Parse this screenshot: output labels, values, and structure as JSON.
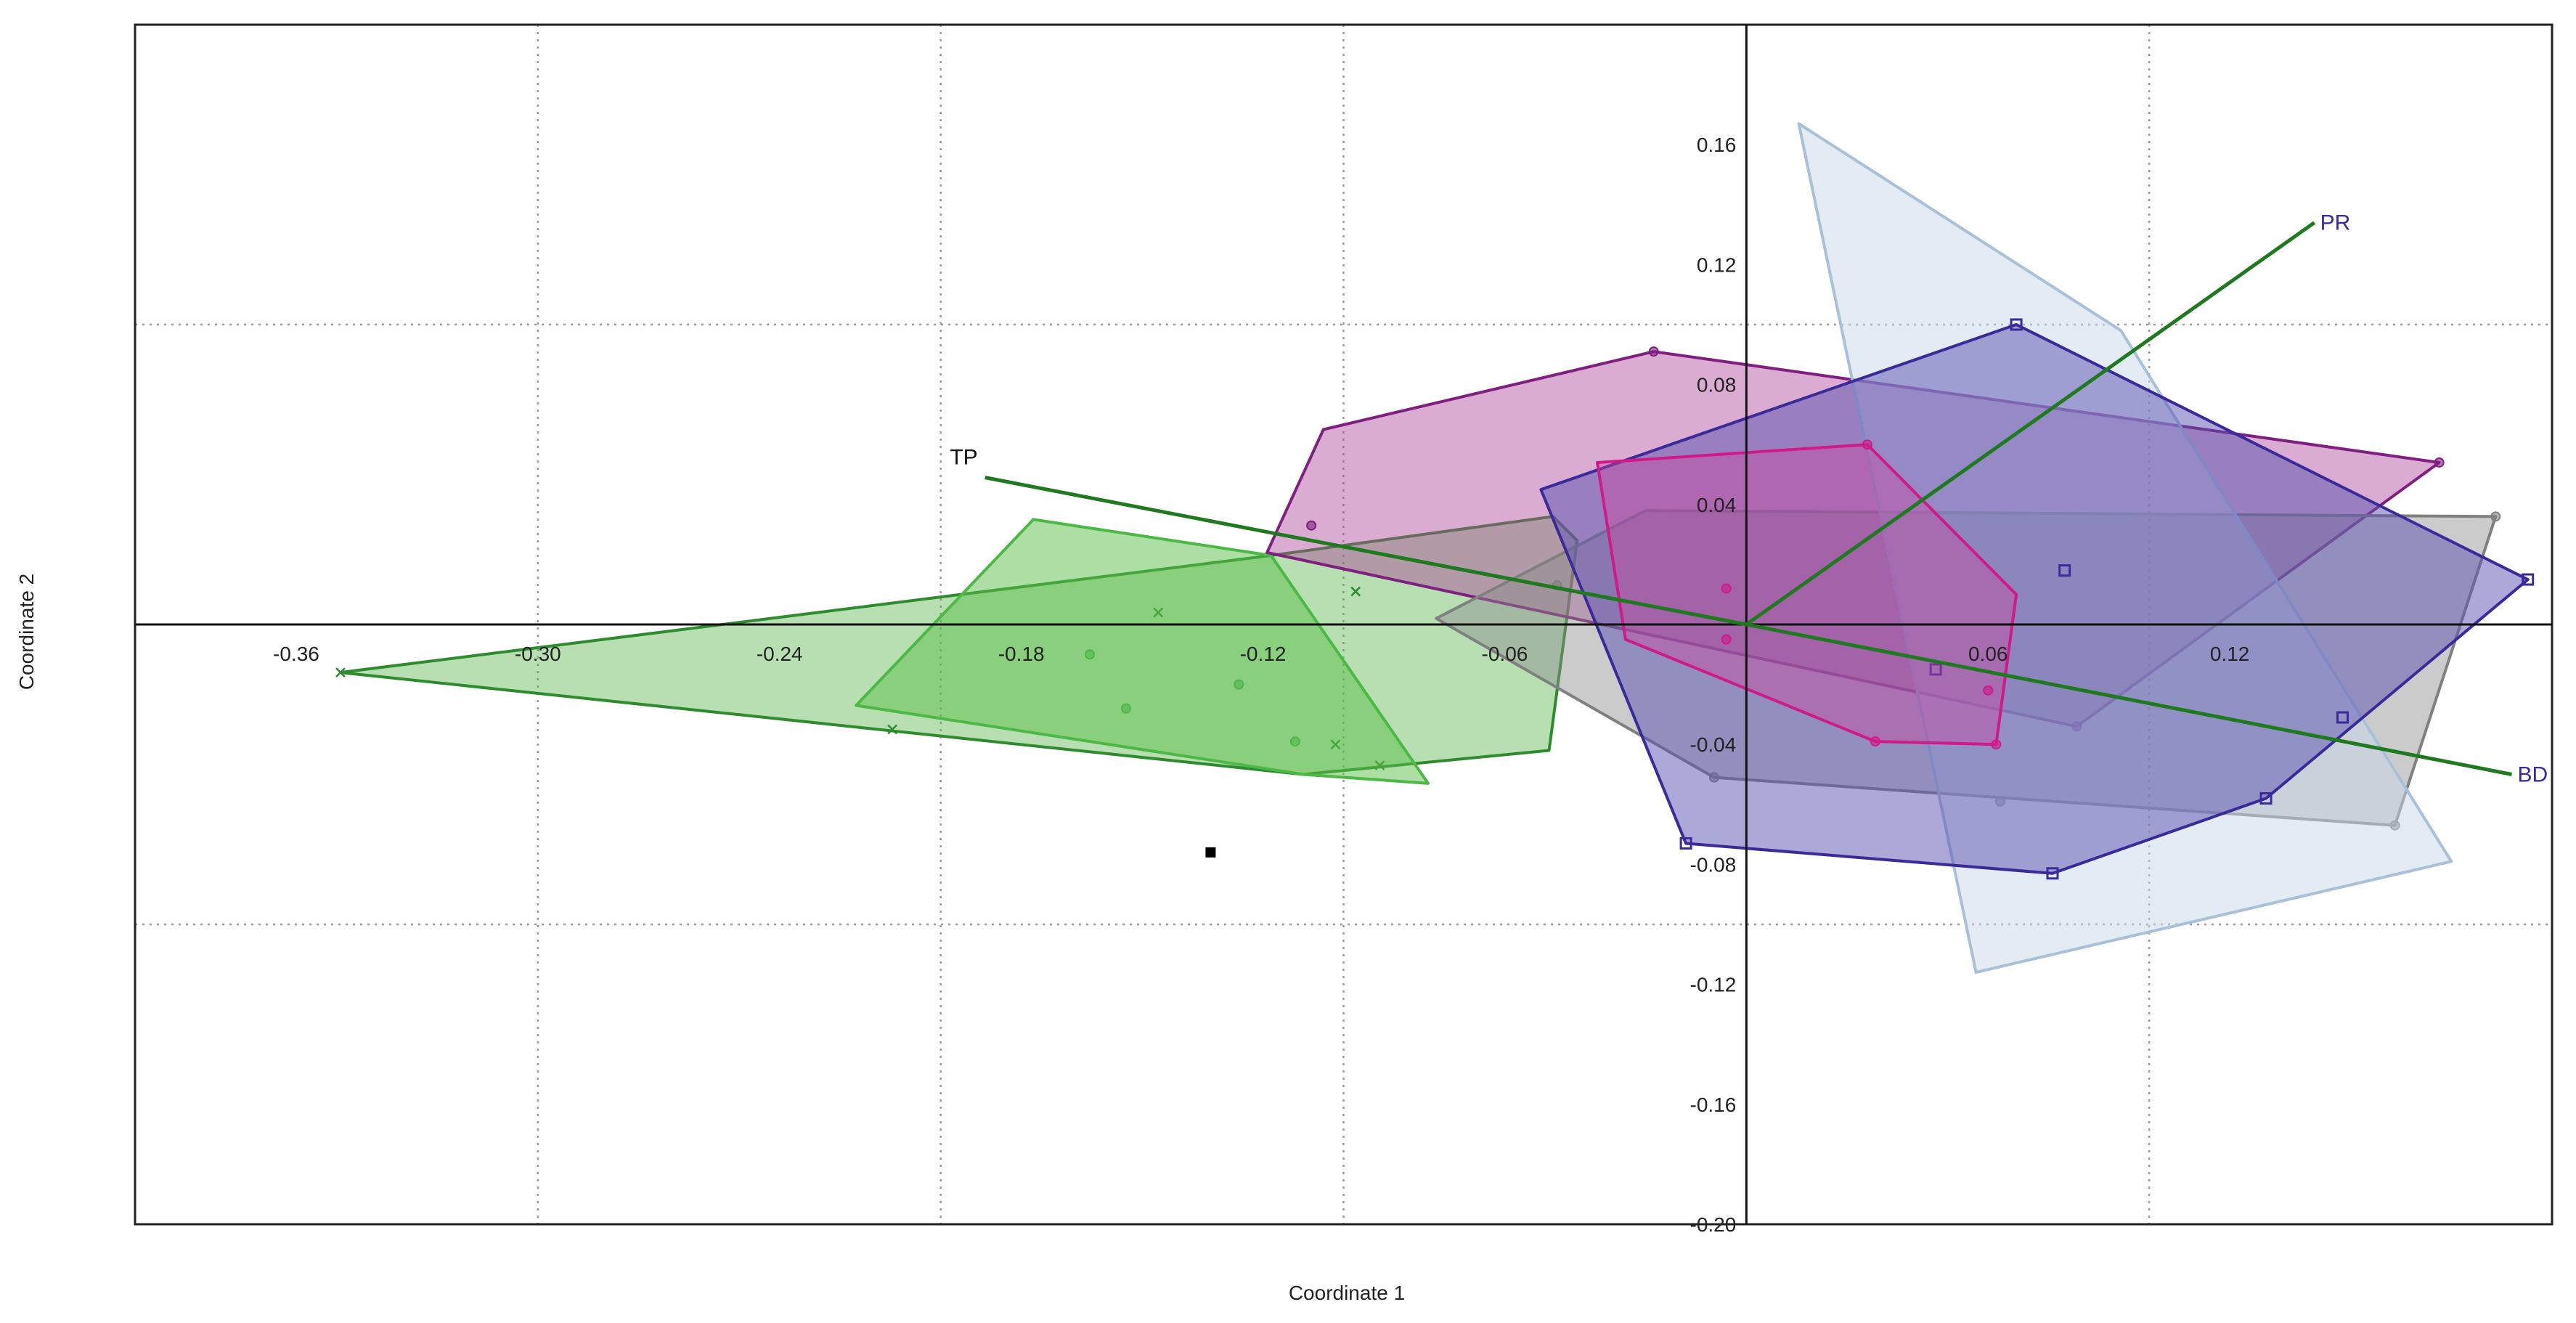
{
  "chart_data": {
    "type": "scatter",
    "title": "",
    "xlabel": "Coordinate 1",
    "ylabel": "Coordinate 2",
    "xlim": [
      -0.4,
      0.2
    ],
    "ylim": [
      -0.2,
      0.2
    ],
    "x_ticks": [
      -0.36,
      -0.3,
      -0.24,
      -0.18,
      -0.12,
      -0.06,
      0.06,
      0.12
    ],
    "x_tick_labels": [
      "-0.36",
      "-0.30",
      "-0.24",
      "-0.18",
      "-0.12",
      "-0.06",
      "0.06",
      "0.12"
    ],
    "y_ticks": [
      0.16,
      0.12,
      0.08,
      0.04,
      -0.04,
      -0.08,
      -0.12,
      -0.16,
      -0.2
    ],
    "y_tick_labels": [
      "0.16",
      "0.12",
      "0.08",
      "0.04",
      "-0.04",
      "-0.08",
      "-0.12",
      "-0.16",
      "-0.20"
    ],
    "grid_x": [
      -0.3,
      -0.2,
      -0.1,
      0.1
    ],
    "grid_y": [
      0.1,
      -0.1
    ],
    "grid": "dotted",
    "hulls": [
      {
        "color": "#2e8b2e",
        "fill": "#4caf3f",
        "opacity": 0.4,
        "marker": "x",
        "hull": [
          [
            -0.349,
            -0.016
          ],
          [
            -0.118,
            0.023
          ],
          [
            -0.048,
            0.036
          ],
          [
            -0.042,
            0.028
          ],
          [
            -0.049,
            -0.042
          ],
          [
            -0.11,
            -0.05
          ]
        ],
        "points": [
          [
            -0.349,
            -0.016
          ],
          [
            -0.212,
            -0.035
          ],
          [
            -0.146,
            0.004
          ],
          [
            -0.097,
            0.011
          ],
          [
            -0.102,
            -0.04
          ],
          [
            -0.091,
            -0.047
          ]
        ]
      },
      {
        "color": "#4cb845",
        "fill": "#5cc04a",
        "opacity": 0.5,
        "marker": "o",
        "hull": [
          [
            -0.221,
            -0.027
          ],
          [
            -0.177,
            0.035
          ],
          [
            -0.118,
            0.023
          ],
          [
            -0.079,
            -0.053
          ],
          [
            -0.11,
            -0.05
          ]
        ],
        "points": [
          [
            -0.163,
            -0.01
          ],
          [
            -0.154,
            -0.028
          ],
          [
            -0.126,
            -0.02
          ],
          [
            -0.112,
            -0.039
          ]
        ]
      },
      {
        "color": "#7f1f7f",
        "fill": "#b0469a",
        "opacity": 0.45,
        "marker": "o",
        "hull": [
          [
            -0.119,
            0.024
          ],
          [
            -0.105,
            0.065
          ],
          [
            -0.023,
            0.091
          ],
          [
            0.172,
            0.054
          ],
          [
            0.082,
            -0.034
          ]
        ],
        "points": [
          [
            -0.108,
            0.033
          ],
          [
            -0.023,
            0.091
          ],
          [
            0.172,
            0.054
          ],
          [
            0.082,
            -0.034
          ]
        ]
      },
      {
        "color": "#808080",
        "fill": "#8c8c8c",
        "opacity": 0.45,
        "marker": "o",
        "hull": [
          [
            -0.077,
            0.002
          ],
          [
            -0.025,
            0.038
          ],
          [
            0.186,
            0.036
          ],
          [
            0.161,
            -0.067
          ],
          [
            -0.008,
            -0.051
          ]
        ],
        "points": [
          [
            -0.047,
            0.013
          ],
          [
            0.186,
            0.036
          ],
          [
            0.161,
            -0.067
          ],
          [
            -0.008,
            -0.051
          ],
          [
            0.063,
            -0.059
          ]
        ]
      },
      {
        "color": "#a8c0d8",
        "fill": "#c8d8ea",
        "opacity": 0.5,
        "marker": "none",
        "hull": [
          [
            0.013,
            0.167
          ],
          [
            0.093,
            0.098
          ],
          [
            0.175,
            -0.079
          ],
          [
            0.057,
            -0.116
          ]
        ],
        "points": [
          [
            0.013,
            0.167
          ],
          [
            0.093,
            0.098
          ],
          [
            0.175,
            -0.079
          ],
          [
            0.057,
            -0.116
          ]
        ]
      },
      {
        "color": "#3a2a9a",
        "fill": "#5a52b0",
        "opacity": 0.5,
        "marker": "square",
        "hull": [
          [
            -0.051,
            0.045
          ],
          [
            0.067,
            0.1
          ],
          [
            0.194,
            0.015
          ],
          [
            0.129,
            -0.058
          ],
          [
            0.076,
            -0.083
          ],
          [
            -0.015,
            -0.073
          ]
        ],
        "points": [
          [
            0.067,
            0.1
          ],
          [
            0.194,
            0.015
          ],
          [
            0.129,
            -0.058
          ],
          [
            0.076,
            -0.083
          ],
          [
            -0.015,
            -0.073
          ],
          [
            0.047,
            -0.015
          ],
          [
            0.079,
            0.018
          ],
          [
            0.148,
            -0.031
          ]
        ]
      },
      {
        "color": "#d01a8a",
        "fill": "#d0439a",
        "opacity": 0.4,
        "marker": "o",
        "hull": [
          [
            -0.037,
            0.054
          ],
          [
            0.03,
            0.06
          ],
          [
            0.067,
            0.01
          ],
          [
            0.062,
            -0.04
          ],
          [
            0.032,
            -0.039
          ],
          [
            -0.03,
            -0.005
          ]
        ],
        "points": [
          [
            -0.005,
            0.012
          ],
          [
            0.03,
            0.06
          ],
          [
            0.062,
            -0.04
          ],
          [
            0.032,
            -0.039
          ],
          [
            -0.005,
            -0.005
          ],
          [
            0.06,
            -0.022
          ]
        ]
      }
    ],
    "vectors": [
      {
        "label": "TP",
        "x": -0.189,
        "y": 0.049,
        "color": "#1f7a1f",
        "label_color": "#111111"
      },
      {
        "label": "PR",
        "x": 0.141,
        "y": 0.134,
        "color": "#1f7a1f",
        "label_color": "#3a2a9a"
      },
      {
        "label": "BD",
        "x": 0.19,
        "y": -0.05,
        "color": "#1f7a1f",
        "label_color": "#3a2a9a"
      }
    ],
    "extra_points": [
      {
        "x": -0.133,
        "y": -0.076,
        "marker": "square-filled",
        "color": "#000000"
      }
    ]
  }
}
